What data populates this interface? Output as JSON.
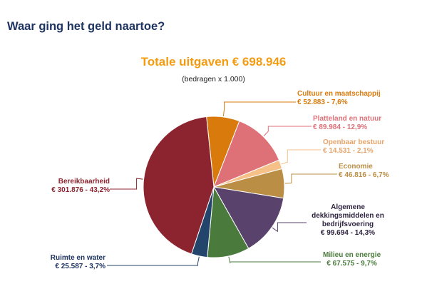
{
  "page_title": "Waar ging het geld naartoe?",
  "chart_data": {
    "type": "pie",
    "title": "Totale uitgaven € 698.946",
    "subtitle": "(bedragen x 1.000)",
    "start_angle_deg": -6,
    "slices": [
      {
        "name": "Cultuur en maatschappij",
        "value": 52883,
        "label_value": "€ 52.883 - 7,6%",
        "color": "#d97a0c"
      },
      {
        "name": "Platteland en natuur",
        "value": 89984,
        "label_value": "€ 89.984 - 12,9%",
        "color": "#de7078"
      },
      {
        "name": "Openbaar bestuur",
        "value": 14531,
        "label_value": "€ 14.531 - 2,1%",
        "color": "#f5c189"
      },
      {
        "name": "Economie",
        "value": 46816,
        "label_value": "€ 46.816 - 6,7%",
        "color": "#bb8e45"
      },
      {
        "name": "Algemene dekkingsmiddelen en bedrijfsvoering",
        "value": 99694,
        "label_value": "€ 99.694 - 14,3%",
        "color": "#59426c"
      },
      {
        "name": "Milieu en energie",
        "value": 67575,
        "label_value": "€ 67.575 - 9,7%",
        "color": "#4a7b3c"
      },
      {
        "name": "Ruimte en water",
        "value": 25587,
        "label_value": "€ 25.587 - 3,7%",
        "color": "#24456b"
      },
      {
        "name": "Bereikbaarheid",
        "value": 301876,
        "label_value": "€ 301.876 - 43,2%",
        "color": "#8c2430"
      }
    ]
  }
}
